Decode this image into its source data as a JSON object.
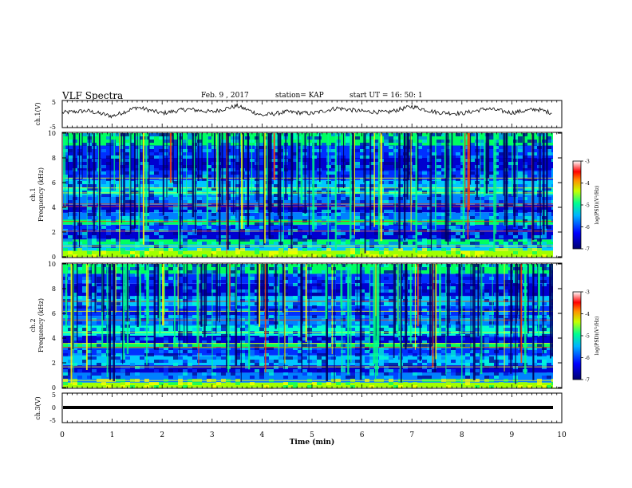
{
  "header": {
    "title": "VLF Spectra",
    "date": "Feb. 9 , 2017",
    "station": "station= KAP",
    "start": "start UT =   16: 50: 1"
  },
  "chart_data": [
    {
      "type": "line",
      "panel": "ch1_waveform",
      "ylabel": "ch.1(V)",
      "ylim": [
        -5,
        5
      ],
      "yticks": [
        "5",
        "-5"
      ],
      "xlim": [
        0,
        10
      ],
      "series": [
        {
          "x_min": [
            0,
            0.5,
            1,
            1.5,
            2,
            2.5,
            3,
            3.5,
            4,
            4.5,
            5,
            5.5,
            6,
            6.5,
            7,
            7.5,
            8,
            8.5,
            9,
            9.5,
            9.8
          ],
          "y_volts": [
            0.5,
            1.2,
            -0.8,
            2.5,
            0.3,
            1.8,
            0.8,
            3.0,
            -0.5,
            0.8,
            0.2,
            2.2,
            1.0,
            0.6,
            2.8,
            0.6,
            0.2,
            2.0,
            0.5,
            1.8,
            0.4
          ]
        }
      ]
    },
    {
      "type": "heatmap",
      "panel": "ch1_spectrogram",
      "ylabel": "ch.1\nFrequency (kHz)",
      "ylim": [
        0,
        10
      ],
      "yticks": [
        "0",
        "2",
        "4",
        "6",
        "8",
        "10"
      ],
      "xlim": [
        0,
        10
      ],
      "colorbar": {
        "label": "log(PSD)(V²/Hz)",
        "range": [
          -7,
          -3
        ],
        "ticks": [
          "-3",
          "-4",
          "-5",
          "-6",
          "-7"
        ]
      }
    },
    {
      "type": "heatmap",
      "panel": "ch2_spectrogram",
      "ylabel": "ch.2\nFrequency (kHz)",
      "ylim": [
        0,
        10
      ],
      "yticks": [
        "0",
        "2",
        "4",
        "6",
        "8",
        "10"
      ],
      "xlim": [
        0,
        10
      ],
      "colorbar": {
        "label": "log(PSD)(V²/Hz)",
        "range": [
          -7,
          -3
        ],
        "ticks": [
          "-3",
          "-4",
          "-5",
          "-6",
          "-7"
        ]
      }
    },
    {
      "type": "line",
      "panel": "ch3_waveform",
      "ylabel": "ch.3(V)",
      "ylim": [
        -5,
        5
      ],
      "yticks": [
        "5",
        "0",
        "-5"
      ],
      "xlim": [
        0,
        10
      ],
      "series": [
        {
          "x_min": [
            0,
            9.8
          ],
          "y_volts": [
            0,
            0
          ]
        }
      ]
    }
  ],
  "xaxis": {
    "label": "Time (min)",
    "ticks": [
      "0",
      "1",
      "2",
      "3",
      "4",
      "5",
      "6",
      "7",
      "8",
      "9",
      "10"
    ]
  },
  "colors": {
    "scale": [
      "#00008b",
      "#0000ff",
      "#00c0ff",
      "#00ff80",
      "#ffff00",
      "#ff8000",
      "#ff0000",
      "#ffffff"
    ]
  }
}
